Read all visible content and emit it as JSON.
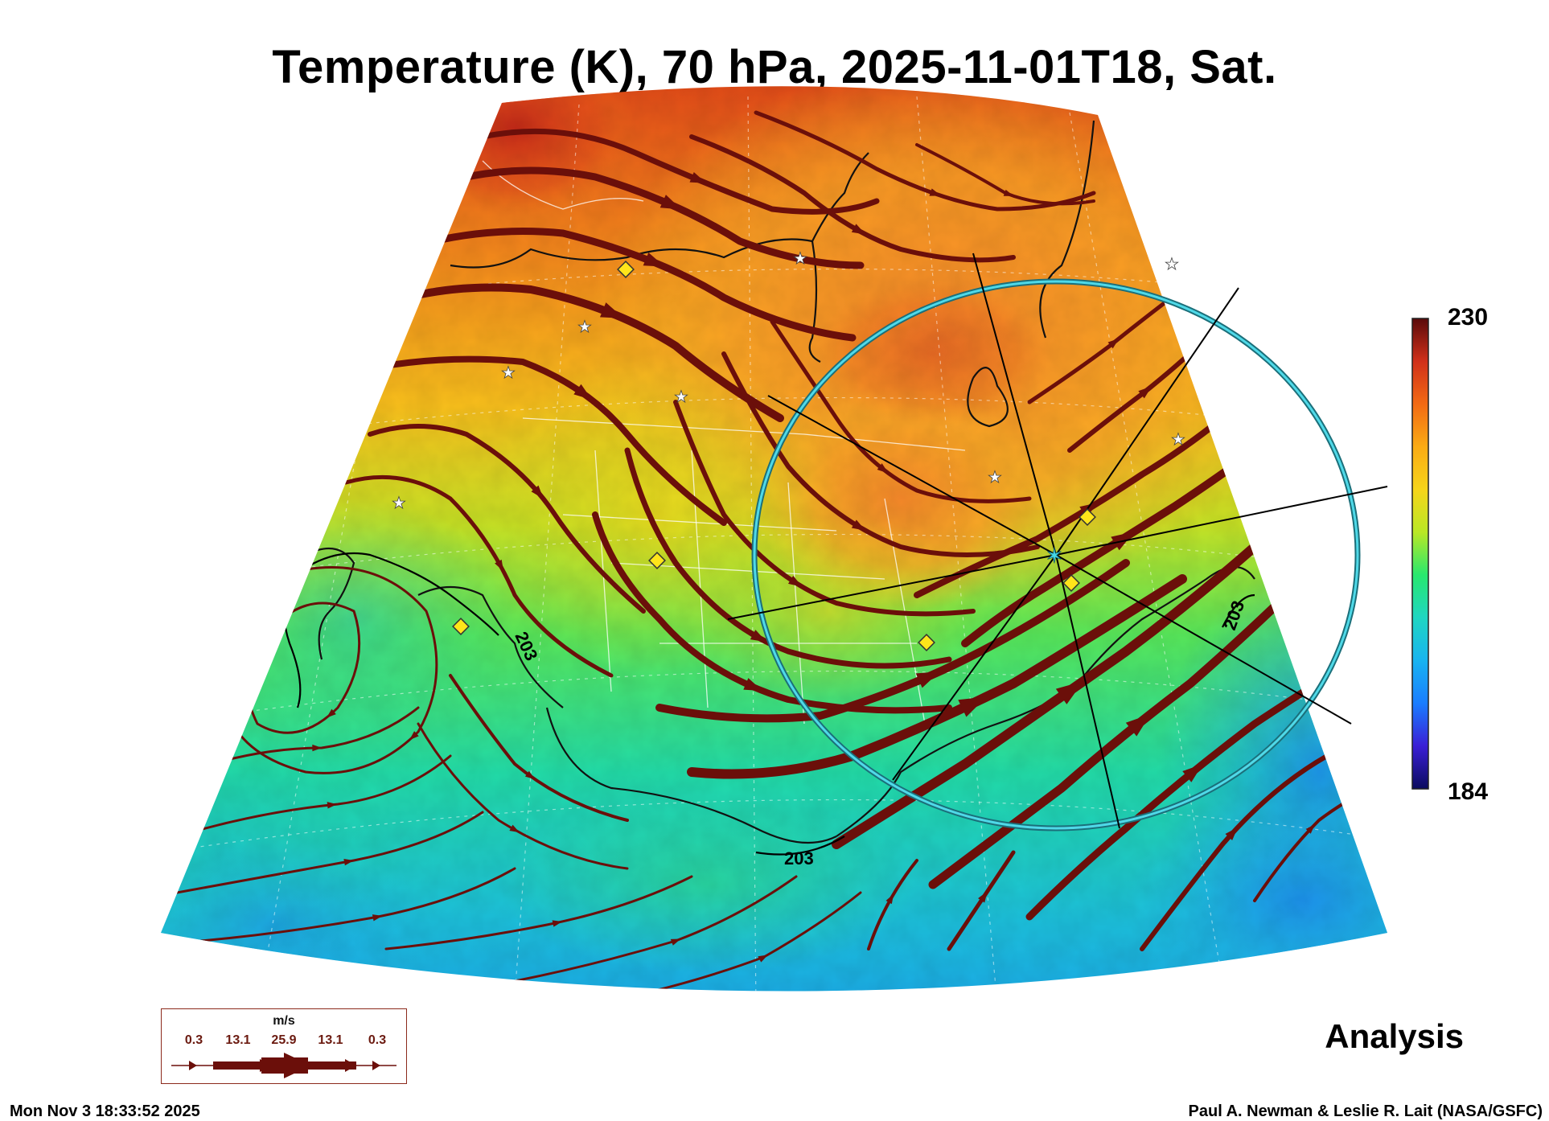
{
  "title": "Temperature (K), 70 hPa, 2025-11-01T18, Sat.",
  "colorbar": {
    "max_label": "230",
    "min_label": "184",
    "max": 230,
    "min": 184,
    "colors": [
      "#0b0b5e",
      "#3a1fd6",
      "#1a7dff",
      "#18b4f0",
      "#1fd6c2",
      "#28e86e",
      "#b9e825",
      "#f6d51a",
      "#fbab14",
      "#f26a14",
      "#d0301a",
      "#5a0a0a"
    ]
  },
  "contours": [
    {
      "label": "203",
      "value": 203
    },
    {
      "label": "203",
      "value": 203
    },
    {
      "label": "203",
      "value": 203
    }
  ],
  "wind_legend": {
    "unit": "m/s",
    "values": [
      "0.3",
      "13.1",
      "25.9",
      "13.1",
      "0.3"
    ]
  },
  "analysis_label": "Analysis",
  "timestamp": "Mon Nov  3 18:33:52 2025",
  "credit": "Paul A. Newman & Leslie R. Lait (NASA/GSFC)",
  "stream_color": "#6b0f0a",
  "circle_color": "#33c8dc"
}
